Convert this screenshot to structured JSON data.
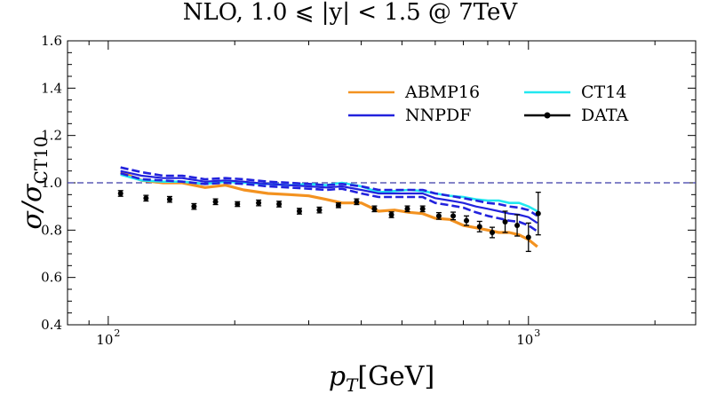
{
  "chart_data": {
    "type": "line",
    "title": "NLO, 1.0 ⩽ |y| < 1.5 @ 7TeV",
    "xlabel": "p_T[GeV]",
    "ylabel": "σ/σ_CT10",
    "xscale": "log",
    "xlim": [
      80,
      2500
    ],
    "ylim": [
      0.4,
      1.6
    ],
    "yticks": [
      "0.4",
      "0.6",
      "0.8",
      "1.0",
      "1.2",
      "1.4",
      "1.6"
    ],
    "xtick_labels": [
      {
        "value": 100,
        "base": "10",
        "exp": "2"
      },
      {
        "value": 1000,
        "base": "10",
        "exp": "3"
      }
    ],
    "reference_line": 1.0,
    "legend_position": "top-right",
    "series": [
      {
        "name": "ABMP16",
        "color": "#f39220",
        "style": "solid",
        "x": [
          107,
          120,
          135,
          150,
          170,
          190,
          210,
          240,
          270,
          300,
          330,
          360,
          400,
          440,
          480,
          520,
          560,
          600,
          650,
          700,
          750,
          800,
          850,
          900,
          950,
          1000,
          1050
        ],
        "y": [
          1.045,
          1.01,
          1.0,
          1.0,
          0.98,
          0.99,
          0.97,
          0.955,
          0.95,
          0.945,
          0.93,
          0.915,
          0.915,
          0.88,
          0.885,
          0.875,
          0.87,
          0.85,
          0.845,
          0.82,
          0.81,
          0.8,
          0.79,
          0.79,
          0.78,
          0.76,
          0.73
        ]
      },
      {
        "name": "CT14",
        "color": "#22e8f0",
        "style": "solid",
        "x": [
          107,
          120,
          135,
          150,
          170,
          190,
          210,
          240,
          270,
          300,
          330,
          360,
          400,
          440,
          480,
          520,
          560,
          600,
          650,
          700,
          750,
          800,
          850,
          900,
          950,
          1000,
          1050
        ],
        "y": [
          1.035,
          1.01,
          1.005,
          1.005,
          0.995,
          1.005,
          1.0,
          0.995,
          0.99,
          0.995,
          0.99,
          1.0,
          0.985,
          0.96,
          0.965,
          0.97,
          0.965,
          0.955,
          0.945,
          0.94,
          0.93,
          0.925,
          0.925,
          0.915,
          0.915,
          0.9,
          0.88
        ]
      },
      {
        "name": "NNPDF",
        "color": "#2222dd",
        "style": "solid",
        "x": [
          107,
          120,
          135,
          150,
          170,
          190,
          210,
          240,
          270,
          300,
          330,
          360,
          400,
          440,
          480,
          520,
          560,
          600,
          650,
          700,
          750,
          800,
          850,
          900,
          950,
          1000,
          1050
        ],
        "y": [
          1.05,
          1.03,
          1.02,
          1.02,
          1.005,
          1.01,
          1.005,
          0.995,
          0.99,
          0.985,
          0.98,
          0.985,
          0.97,
          0.955,
          0.955,
          0.955,
          0.955,
          0.935,
          0.925,
          0.915,
          0.9,
          0.89,
          0.88,
          0.87,
          0.865,
          0.855,
          0.83
        ]
      },
      {
        "name": "NNPDF upper band",
        "color": "#2222dd",
        "style": "dashed",
        "x": [
          107,
          120,
          135,
          150,
          170,
          190,
          210,
          240,
          270,
          300,
          330,
          360,
          400,
          440,
          480,
          520,
          560,
          600,
          650,
          700,
          750,
          800,
          850,
          900,
          950,
          1000,
          1050
        ],
        "y": [
          1.065,
          1.045,
          1.03,
          1.03,
          1.015,
          1.02,
          1.015,
          1.005,
          1.0,
          0.995,
          0.99,
          0.995,
          0.985,
          0.97,
          0.97,
          0.97,
          0.97,
          0.955,
          0.945,
          0.935,
          0.925,
          0.915,
          0.91,
          0.9,
          0.895,
          0.885,
          0.86
        ]
      },
      {
        "name": "NNPDF lower band",
        "color": "#2222dd",
        "style": "dashed",
        "x": [
          107,
          120,
          135,
          150,
          170,
          190,
          210,
          240,
          270,
          300,
          330,
          360,
          400,
          440,
          480,
          520,
          560,
          600,
          650,
          700,
          750,
          800,
          850,
          900,
          950,
          1000,
          1050
        ],
        "y": [
          1.04,
          1.015,
          1.01,
          1.005,
          0.995,
          1.0,
          0.995,
          0.985,
          0.98,
          0.975,
          0.97,
          0.975,
          0.955,
          0.94,
          0.94,
          0.94,
          0.94,
          0.915,
          0.905,
          0.895,
          0.875,
          0.86,
          0.85,
          0.84,
          0.835,
          0.82,
          0.795
        ]
      },
      {
        "name": "DATA",
        "color": "#000000",
        "style": "points",
        "x": [
          107,
          123,
          140,
          160,
          180,
          203,
          228,
          255,
          285,
          318,
          353,
          390,
          430,
          472,
          515,
          560,
          612,
          662,
          712,
          765,
          820,
          880,
          940,
          1000,
          1055
        ],
        "y": [
          0.955,
          0.935,
          0.93,
          0.9,
          0.92,
          0.91,
          0.915,
          0.91,
          0.88,
          0.885,
          0.905,
          0.92,
          0.89,
          0.865,
          0.89,
          0.89,
          0.86,
          0.86,
          0.84,
          0.815,
          0.79,
          0.835,
          0.82,
          0.77,
          0.87
        ],
        "yerr": [
          0.012,
          0.012,
          0.012,
          0.012,
          0.012,
          0.01,
          0.012,
          0.012,
          0.012,
          0.012,
          0.01,
          0.012,
          0.012,
          0.012,
          0.012,
          0.012,
          0.014,
          0.016,
          0.02,
          0.022,
          0.022,
          0.045,
          0.045,
          0.06,
          0.09
        ]
      }
    ],
    "legend": [
      {
        "label": "ABMP16",
        "color": "#f39220",
        "marker": false
      },
      {
        "label": "CT14",
        "color": "#22e8f0",
        "marker": false
      },
      {
        "label": "NNPDF",
        "color": "#2222dd",
        "marker": false
      },
      {
        "label": "DATA",
        "color": "#000000",
        "marker": true
      }
    ]
  }
}
